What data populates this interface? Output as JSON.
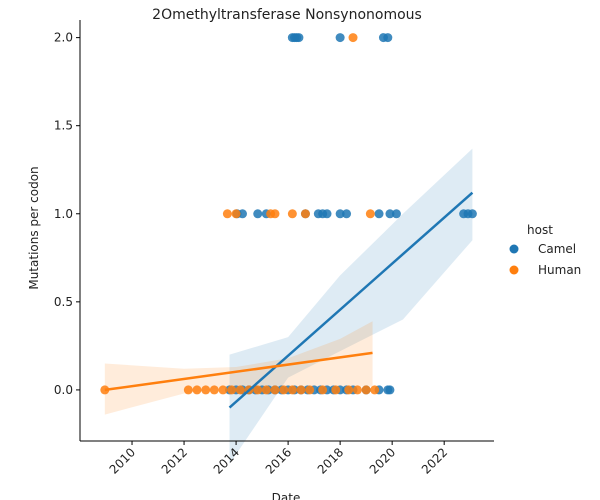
{
  "chart_data": {
    "type": "scatter",
    "title": "2Omethyltransferase Nonsynonomous",
    "xlabel": "Date",
    "ylabel": "Mutations per codon",
    "xlim": [
      "2008-01-01",
      "2023-12-01"
    ],
    "ylim": [
      -0.29,
      2.1
    ],
    "x_ticks": [
      "2010",
      "2012",
      "2014",
      "2016",
      "2018",
      "2020",
      "2022"
    ],
    "y_ticks": [
      "0.0",
      "0.5",
      "1.0",
      "1.5",
      "2.0"
    ],
    "grid": false,
    "legend": {
      "title": "host",
      "placement": "right"
    },
    "series": [
      {
        "name": "Camel",
        "color": "#1f77b4",
        "points": [
          [
            "2016-03-01",
            2.0
          ],
          [
            "2016-04-01",
            2.0
          ],
          [
            "2016-05-01",
            2.0
          ],
          [
            "2016-06-01",
            2.0
          ],
          [
            "2018-01-01",
            2.0
          ],
          [
            "2019-09-01",
            2.0
          ],
          [
            "2019-11-01",
            2.0
          ],
          [
            "2014-01-15",
            1.0
          ],
          [
            "2014-04-01",
            1.0
          ],
          [
            "2014-11-01",
            1.0
          ],
          [
            "2015-03-01",
            1.0
          ],
          [
            "2016-09-01",
            1.0
          ],
          [
            "2017-03-01",
            1.0
          ],
          [
            "2017-05-01",
            1.0
          ],
          [
            "2017-07-01",
            1.0
          ],
          [
            "2018-01-01",
            1.0
          ],
          [
            "2018-04-01",
            1.0
          ],
          [
            "2019-07-01",
            1.0
          ],
          [
            "2019-12-01",
            1.0
          ],
          [
            "2020-03-01",
            1.0
          ],
          [
            "2022-10-01",
            1.0
          ],
          [
            "2022-12-01",
            1.0
          ],
          [
            "2023-02-01",
            1.0
          ],
          [
            "2013-10-01",
            0.0
          ],
          [
            "2014-01-01",
            0.0
          ],
          [
            "2014-04-01",
            0.0
          ],
          [
            "2014-07-01",
            0.0
          ],
          [
            "2014-10-01",
            0.0
          ],
          [
            "2015-01-01",
            0.0
          ],
          [
            "2015-04-01",
            0.0
          ],
          [
            "2015-07-01",
            0.0
          ],
          [
            "2015-10-01",
            0.0
          ],
          [
            "2016-01-01",
            0.0
          ],
          [
            "2016-04-01",
            0.0
          ],
          [
            "2016-07-01",
            0.0
          ],
          [
            "2016-10-01",
            0.0
          ],
          [
            "2017-01-01",
            0.0
          ],
          [
            "2017-04-01",
            0.0
          ],
          [
            "2017-07-01",
            0.0
          ],
          [
            "2017-10-01",
            0.0
          ],
          [
            "2018-01-01",
            0.0
          ],
          [
            "2018-04-01",
            0.0
          ],
          [
            "2018-07-01",
            0.0
          ],
          [
            "2019-01-01",
            0.0
          ],
          [
            "2019-07-01",
            0.0
          ],
          [
            "2019-11-01",
            0.0
          ],
          [
            "2019-12-01",
            0.0
          ]
        ],
        "trend": {
          "from": [
            "2013-10-01",
            -0.1
          ],
          "to": [
            "2023-02-01",
            1.12
          ]
        },
        "band": [
          [
            "2013-10-01",
            -0.42,
            0.2
          ],
          [
            "2016-01-01",
            0.07,
            0.3
          ],
          [
            "2018-01-01",
            0.22,
            0.65
          ],
          [
            "2020-06-01",
            0.4,
            1.0
          ],
          [
            "2023-02-01",
            0.85,
            1.37
          ]
        ]
      },
      {
        "name": "Human",
        "color": "#ff7f0e",
        "points": [
          [
            "2008-12-15",
            0.0
          ],
          [
            "2013-09-01",
            1.0
          ],
          [
            "2014-01-01",
            1.0
          ],
          [
            "2015-05-01",
            1.0
          ],
          [
            "2015-07-01",
            1.0
          ],
          [
            "2016-03-01",
            1.0
          ],
          [
            "2016-09-01",
            1.0
          ],
          [
            "2019-03-01",
            1.0
          ],
          [
            "2018-07-01",
            2.0
          ],
          [
            "2012-03-01",
            0.0
          ],
          [
            "2012-07-01",
            0.0
          ],
          [
            "2012-11-01",
            0.0
          ],
          [
            "2013-03-01",
            0.0
          ],
          [
            "2013-07-01",
            0.0
          ],
          [
            "2013-11-01",
            0.0
          ],
          [
            "2014-03-01",
            0.0
          ],
          [
            "2014-07-01",
            0.0
          ],
          [
            "2014-11-01",
            0.0
          ],
          [
            "2015-03-01",
            0.0
          ],
          [
            "2015-07-01",
            0.0
          ],
          [
            "2015-11-01",
            0.0
          ],
          [
            "2016-03-01",
            0.0
          ],
          [
            "2016-07-01",
            0.0
          ],
          [
            "2016-11-01",
            0.0
          ],
          [
            "2017-05-01",
            0.0
          ],
          [
            "2017-11-01",
            0.0
          ],
          [
            "2018-05-01",
            0.0
          ],
          [
            "2018-09-01",
            0.0
          ],
          [
            "2019-01-01",
            0.0
          ],
          [
            "2019-05-01",
            0.0
          ]
        ],
        "trend": {
          "from": [
            "2008-12-15",
            0.0
          ],
          "to": [
            "2019-04-01",
            0.21
          ]
        },
        "band": [
          [
            "2008-12-15",
            -0.14,
            0.15
          ],
          [
            "2012-01-01",
            -0.02,
            0.12
          ],
          [
            "2014-01-01",
            0.02,
            0.13
          ],
          [
            "2016-01-01",
            0.02,
            0.18
          ],
          [
            "2018-01-01",
            0.02,
            0.29
          ],
          [
            "2019-04-01",
            0.02,
            0.39
          ]
        ]
      }
    ]
  }
}
